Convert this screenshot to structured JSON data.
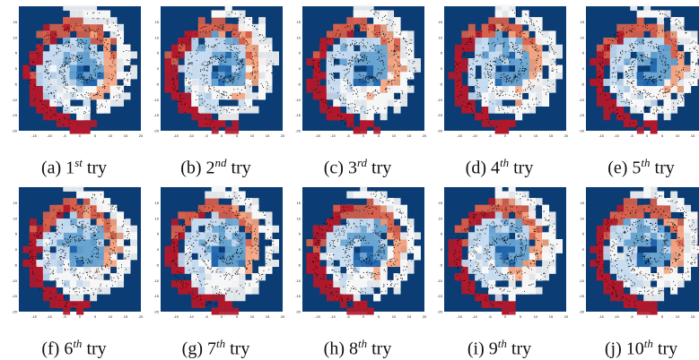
{
  "figure": {
    "panels": [
      {
        "prefix": "(a)",
        "num": "1",
        "sup": "st",
        "suffix": "try"
      },
      {
        "prefix": "(b)",
        "num": "2",
        "sup": "nd",
        "suffix": "try"
      },
      {
        "prefix": "(c)",
        "num": "3",
        "sup": "rd",
        "suffix": "try"
      },
      {
        "prefix": "(d)",
        "num": "4",
        "sup": "th",
        "suffix": "try"
      },
      {
        "prefix": "(e)",
        "num": "5",
        "sup": "th",
        "suffix": "try"
      },
      {
        "prefix": "(f)",
        "num": "6",
        "sup": "th",
        "suffix": "try"
      },
      {
        "prefix": "(g)",
        "num": "7",
        "sup": "th",
        "suffix": "try"
      },
      {
        "prefix": "(h)",
        "num": "8",
        "sup": "th",
        "suffix": "try"
      },
      {
        "prefix": "(i)",
        "num": "9",
        "sup": "th",
        "suffix": "try"
      },
      {
        "prefix": "(j)",
        "num": "10",
        "sup": "th",
        "suffix": "try"
      }
    ]
  },
  "chart_data": {
    "type": "heatmap",
    "description_free": true,
    "panel_count": 10,
    "xlim": [
      -20,
      20
    ],
    "ylim": [
      -20,
      20
    ],
    "xticks": [
      "-15",
      "-10",
      "-5",
      "0",
      "5",
      "10",
      "15",
      "20"
    ],
    "yticks": [
      "15",
      "10",
      "5",
      "0",
      "-5",
      "-10",
      "-15",
      "-20"
    ],
    "colors": {
      "background": "#0b3c73",
      "cold": "#2166ac",
      "mid": "#f7f7f7",
      "warm": "#d6604d",
      "hot": "#b2182b",
      "points": "#000000"
    }
  }
}
